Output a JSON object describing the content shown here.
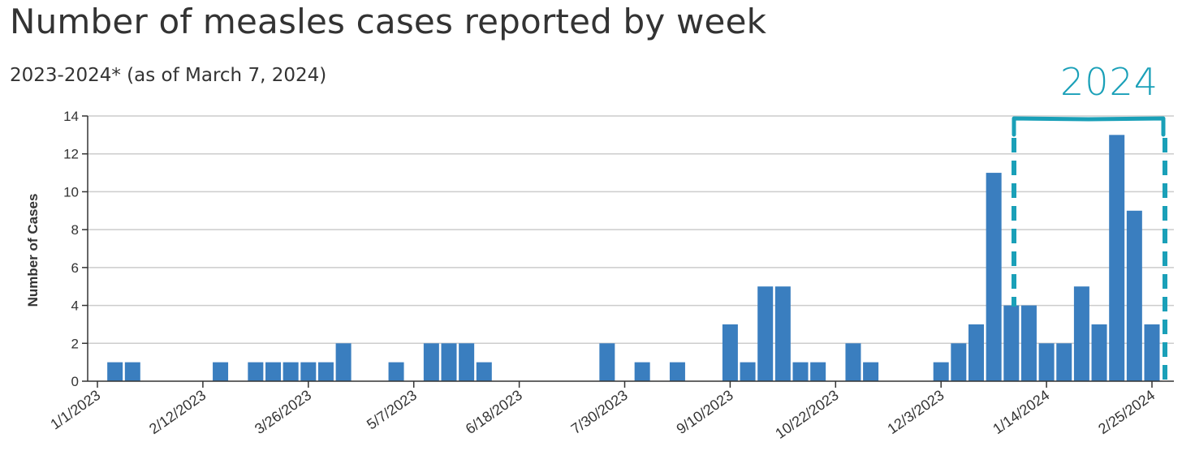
{
  "title": "Number of measles cases reported by week",
  "subtitle": "2023-2024* (as of March 7, 2024)",
  "annotation": {
    "label": "2024",
    "color": "#1aa0b8"
  },
  "chart_data": {
    "type": "bar",
    "title": "Number of measles cases reported by week",
    "subtitle": "2023-2024* (as of March 7, 2024)",
    "xlabel": "",
    "ylabel": "Number of Cases",
    "ylim": [
      0,
      14
    ],
    "yticks": [
      0,
      2,
      4,
      6,
      8,
      10,
      12,
      14
    ],
    "grid": true,
    "bar_color": "#3a7ebf",
    "x_tick_labels": [
      "1/1/2023",
      "2/12/2023",
      "3/26/2023",
      "5/7/2023",
      "6/18/2023",
      "7/30/2023",
      "9/10/2023",
      "10/22/2023",
      "12/3/2023",
      "1/14/2024",
      "2/25/2024"
    ],
    "x_tick_weeks": [
      0,
      6,
      12,
      18,
      24,
      30,
      36,
      42,
      48,
      54,
      60
    ],
    "weeks": [
      {
        "week": 1,
        "value": 1
      },
      {
        "week": 2,
        "value": 1
      },
      {
        "week": 7,
        "value": 1
      },
      {
        "week": 9,
        "value": 1
      },
      {
        "week": 10,
        "value": 1
      },
      {
        "week": 11,
        "value": 1
      },
      {
        "week": 12,
        "value": 1
      },
      {
        "week": 13,
        "value": 1
      },
      {
        "week": 14,
        "value": 2
      },
      {
        "week": 17,
        "value": 1
      },
      {
        "week": 19,
        "value": 2
      },
      {
        "week": 20,
        "value": 2
      },
      {
        "week": 21,
        "value": 2
      },
      {
        "week": 22,
        "value": 1
      },
      {
        "week": 29,
        "value": 2
      },
      {
        "week": 31,
        "value": 1
      },
      {
        "week": 33,
        "value": 1
      },
      {
        "week": 36,
        "value": 3
      },
      {
        "week": 37,
        "value": 1
      },
      {
        "week": 38,
        "value": 5
      },
      {
        "week": 39,
        "value": 5
      },
      {
        "week": 40,
        "value": 1
      },
      {
        "week": 41,
        "value": 1
      },
      {
        "week": 43,
        "value": 2
      },
      {
        "week": 44,
        "value": 1
      },
      {
        "week": 48,
        "value": 1
      },
      {
        "week": 49,
        "value": 2
      },
      {
        "week": 50,
        "value": 3
      },
      {
        "week": 51,
        "value": 11
      },
      {
        "week": 52,
        "value": 4
      },
      {
        "week": 53,
        "value": 4
      },
      {
        "week": 54,
        "value": 2
      },
      {
        "week": 55,
        "value": 2
      },
      {
        "week": 56,
        "value": 5
      },
      {
        "week": 57,
        "value": 3
      },
      {
        "week": 58,
        "value": 13
      },
      {
        "week": 59,
        "value": 9
      },
      {
        "week": 60,
        "value": 3
      }
    ]
  }
}
